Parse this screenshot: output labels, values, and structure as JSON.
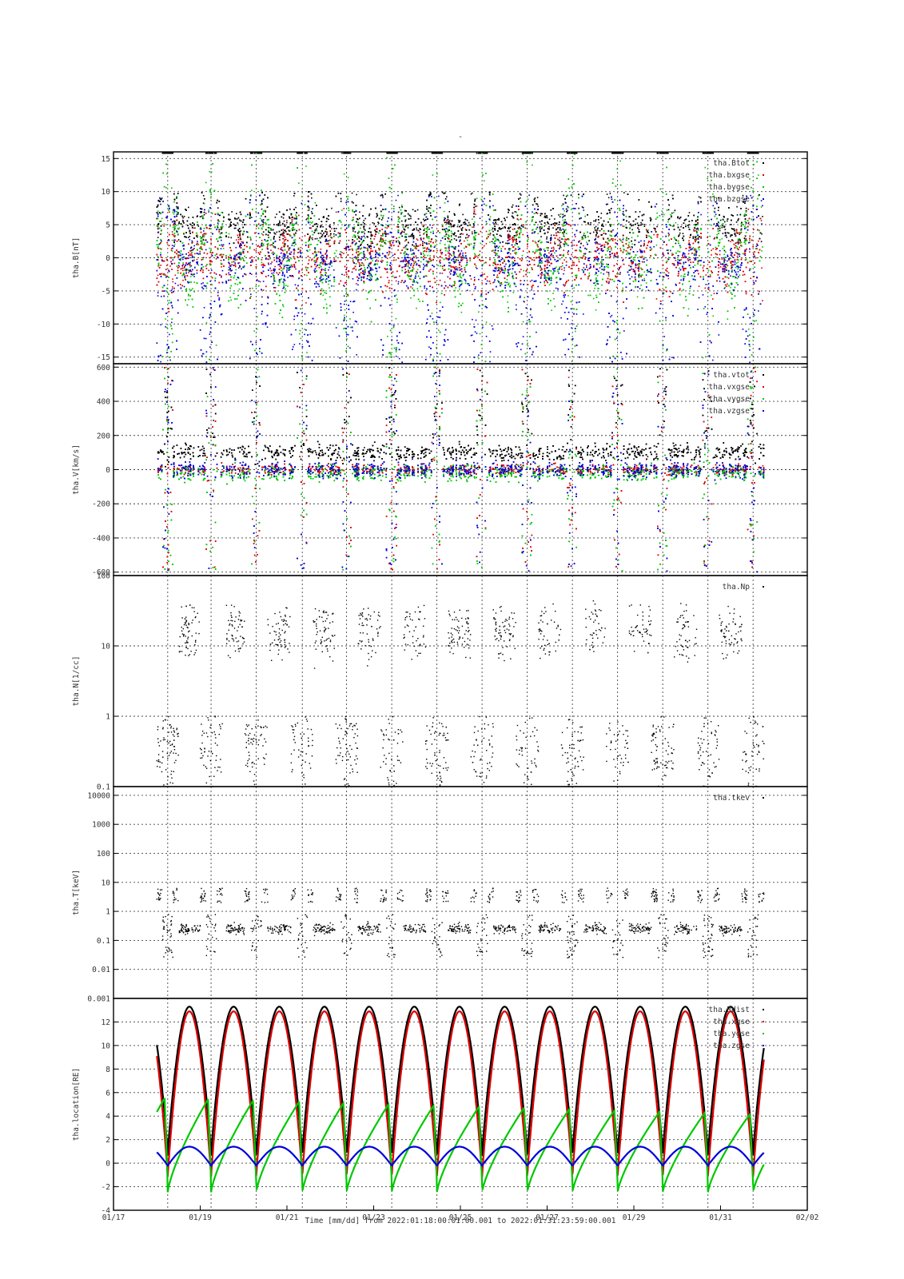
{
  "title": "-",
  "x_axis": {
    "tick_labels": [
      "01/17",
      "01/19",
      "01/21",
      "01/23",
      "01/25",
      "01/27",
      "01/29",
      "01/31",
      "02/02"
    ],
    "label": "Time [mm/dd]  from 2022:01:18:00:01:00.001  to  2022:01:31:23:59:00.001"
  },
  "colors": {
    "black": "#000000",
    "red": "#dd0000",
    "green": "#00c800",
    "blue": "#0000dd"
  },
  "chart_data": [
    {
      "type": "scatter",
      "ylabel": "tha.B[nT]",
      "ylim": [
        -16,
        16
      ],
      "yticks": [
        -15,
        -10,
        -5,
        0,
        5,
        10,
        15
      ],
      "ytick_labels": [
        "-15",
        "-10",
        "-5",
        "0",
        "5",
        "10",
        "15"
      ],
      "grid": true,
      "legend_position": "top-right",
      "series": [
        {
          "name": "tha.Btot",
          "color": "black",
          "summary": "saturates near +16 nT; bursts 2-10 nT in magnetosheath intervals"
        },
        {
          "name": "tha.bxgse",
          "color": "red",
          "summary": "oscillates roughly -10 to +8 nT, centered near 0 in sheath, trending negative near perigee"
        },
        {
          "name": "tha.bygse",
          "color": "green",
          "summary": "spans full range -16 to +16 with sweeping arcs near perigee passes"
        },
        {
          "name": "tha.bzgse",
          "color": "blue",
          "summary": "mostly -15 to +10 with dense clusters near 0 to -3"
        }
      ]
    },
    {
      "type": "scatter",
      "ylabel": "tha.V[km/s]",
      "ylim": [
        -620,
        620
      ],
      "yticks": [
        -600,
        -400,
        -200,
        0,
        200,
        400,
        600
      ],
      "ytick_labels": [
        "-600",
        "-400",
        "-200",
        "0",
        "200",
        "400",
        "600"
      ],
      "grid": true,
      "legend_position": "top-right",
      "series": [
        {
          "name": "tha.vtot",
          "color": "black",
          "summary": "mostly 0-150 km/s with bursts to 600"
        },
        {
          "name": "tha.vxgse",
          "color": "red",
          "summary": "scattered -600 to 600, dense near 0"
        },
        {
          "name": "tha.vygse",
          "color": "green",
          "summary": "scattered -600 to 600, dense near 0"
        },
        {
          "name": "tha.vzgse",
          "color": "blue",
          "summary": "scattered -600 to 600, dense near 0"
        }
      ]
    },
    {
      "type": "scatter",
      "ylabel": "tha.N[1/cc]",
      "yscale": "log",
      "ylim": [
        0.1,
        100
      ],
      "yticks": [
        0.1,
        1,
        10,
        100
      ],
      "ytick_labels": [
        "0.1",
        "1",
        "10",
        "100"
      ],
      "grid": true,
      "legend_position": "top-right",
      "series": [
        {
          "name": "tha.Np",
          "color": "black",
          "summary": "alternates between 5-40 /cc (sheath) and 0.1-1 /cc (magnetosphere) each orbit"
        }
      ]
    },
    {
      "type": "scatter",
      "ylabel": "tha.T[keV]",
      "yscale": "log",
      "ylim": [
        0.001,
        20000
      ],
      "yticks": [
        0.001,
        0.01,
        0.1,
        1,
        10,
        100,
        1000,
        10000
      ],
      "ytick_labels": [
        "0.001",
        "0.01",
        "0.1",
        "1",
        "10",
        "100",
        "1000",
        "10000"
      ],
      "grid": true,
      "legend_position": "top-right",
      "series": [
        {
          "name": "tha.tkev",
          "color": "black",
          "summary": "plateaus near 0.2-0.3 keV in sheath and 2-7 keV in magnetosphere; dips to 0.02"
        }
      ]
    },
    {
      "type": "line",
      "ylabel": "tha.location[RE]",
      "ylim": [
        -4,
        14
      ],
      "yticks": [
        -4,
        -2,
        0,
        2,
        4,
        6,
        8,
        10,
        12
      ],
      "ytick_labels": [
        "-4",
        "-2",
        "0",
        "2",
        "4",
        "6",
        "8",
        "10",
        "12"
      ],
      "grid": true,
      "legend_position": "top-right",
      "orbit": {
        "perigee_dates": [
          "2022-01-18T06:00",
          "2022-01-19T06:00",
          "2022-01-20T07:00",
          "2022-01-21T08:30",
          "2022-01-22T09:00",
          "2022-01-23T10:00",
          "2022-01-24T11:00",
          "2022-01-25T12:00",
          "2022-01-26T13:00",
          "2022-01-27T14:00",
          "2022-01-28T15:00",
          "2022-01-29T16:00",
          "2022-01-30T17:00",
          "2022-01-31T18:00"
        ],
        "apogee_dates": [
          "2022-01-18T18:00",
          "2022-01-19T18:30",
          "2022-01-20T19:30",
          "2022-01-21T20:30",
          "2022-01-22T21:30",
          "2022-01-23T22:30",
          "2022-01-24T23:30",
          "2022-01-26T00:30",
          "2022-01-27T01:30",
          "2022-01-28T02:30",
          "2022-01-29T03:30",
          "2022-01-30T04:30",
          "2022-01-31T05:30"
        ],
        "rdist_apogee": 13.3,
        "xgse_apogee": 12.9,
        "ygse_peak_start": 6.0,
        "ygse_peak_end": 4.5,
        "ygse_min": -2.5,
        "zgse_peak": 1.4,
        "zgse_min": -0.2
      },
      "series": [
        {
          "name": "tha.Rdist",
          "color": "black",
          "summary": "arcs 0 to ~13.3 RE per orbit"
        },
        {
          "name": "tha.xgse",
          "color": "red",
          "summary": "arcs ~-1 to ~12.9 RE per orbit"
        },
        {
          "name": "tha.ygse",
          "color": "green",
          "summary": "sawtooth from ~-2.5 up to ~6 (declining to ~4.5) RE"
        },
        {
          "name": "tha.zgse",
          "color": "blue",
          "summary": "arches -0.2 to 1.4 RE per orbit"
        }
      ]
    }
  ]
}
